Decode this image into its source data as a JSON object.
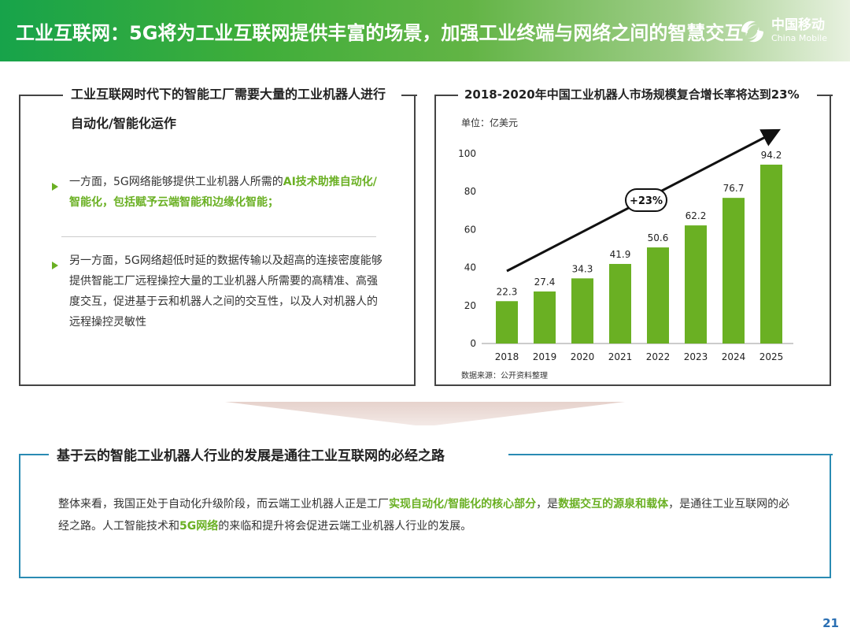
{
  "header": {
    "title": "工业互联网：5G将为工业互联网提供丰富的场景，加强工业终端与网络之间的智慧交互",
    "logo_cn": "中国移动",
    "logo_en": "China Mobile"
  },
  "left_panel": {
    "heading_line1": "工业互联网时代下的智能工厂需要大量的工业机器人进行",
    "heading_line2": "自动化/智能化运作",
    "bullet1": {
      "pre": "一方面，5G网络能够提供工业机器人所需的",
      "highlight": "AI技术助推自动化/智能化，包括赋予云端智能和边缘化智能；"
    },
    "bullet2": "另一方面，5G网络超低时延的数据传输以及超高的连接密度能够提供智能工厂远程操控大量的工业机器人所需要的高精准、高强度交互，促进基于云和机器人之间的交互性，以及人对机器人的远程操控灵敏性"
  },
  "right_panel": {
    "heading": "2018-2020年中国工业机器人市场规模复合增长率将达到23%",
    "source": "数据来源：公开资料整理"
  },
  "chart_data": {
    "type": "bar",
    "categories": [
      "2018",
      "2019",
      "2020",
      "2021",
      "2022",
      "2023",
      "2024",
      "2025"
    ],
    "values": [
      22.3,
      27.4,
      34.3,
      41.9,
      50.6,
      62.2,
      76.7,
      94.2
    ],
    "value_labels": [
      "22.3",
      "27.4",
      "34.3",
      "41.9",
      "50.6",
      "62.2",
      "76.7",
      "94.2"
    ],
    "ylabel": "单位：亿美元",
    "ylim": [
      0,
      100
    ],
    "yticks": [
      0,
      20,
      40,
      60,
      80,
      100
    ],
    "ytick_labels": [
      "0",
      "20",
      "40",
      "60",
      "80",
      "100"
    ],
    "annotation": "+23%",
    "bar_color": "#6ab023"
  },
  "bottom_panel": {
    "heading": "基于云的智能工业机器人行业的发展是通往工业互联网的必经之路",
    "p_part1": "整体来看，我国正处于自动化升级阶段，而云端工业机器人正是工厂",
    "p_hl1": "实现自动化/智能化的核心部分",
    "p_part2": "，是",
    "p_hl2": "数据交互的源泉和载体",
    "p_part3": "，是通往工业互联网的必经之路。人工智能技术和",
    "p_hl3": "5G网络",
    "p_part4": "的来临和提升将会促进云端工业机器人行业的发展。"
  },
  "page_number": "21"
}
